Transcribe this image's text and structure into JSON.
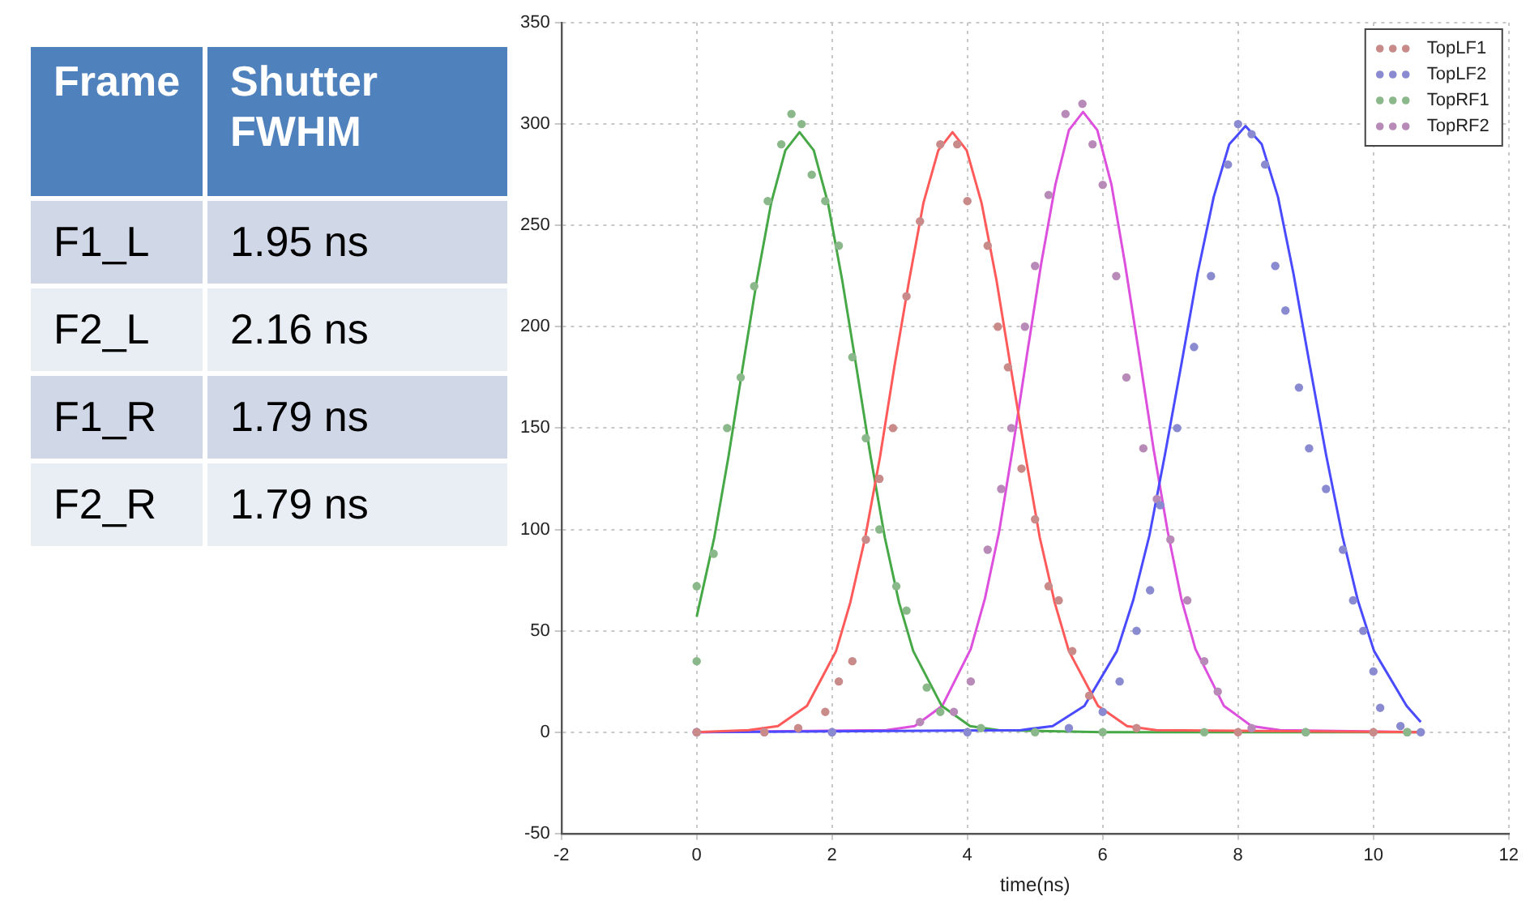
{
  "chart_data": [
    {
      "type": "scatter",
      "xlabel": "time(ns)",
      "xlim": [
        -2,
        12
      ],
      "xticks": [
        -2,
        0,
        2,
        4,
        6,
        8,
        10,
        12
      ],
      "ylim": [
        -50,
        350
      ],
      "yticks": [
        -50,
        0,
        50,
        100,
        150,
        200,
        250,
        300,
        350
      ],
      "grid": true,
      "legend": "top right",
      "marker": "circle",
      "series": [
        {
          "name": "TopLF1",
          "color": "#c98a8a",
          "x": [
            0,
            1,
            1.5,
            1.9,
            2.1,
            2.3,
            2.5,
            2.7,
            2.9,
            3.1,
            3.3,
            3.6,
            3.85,
            4.0,
            4.3,
            4.45,
            4.6,
            4.8,
            5.0,
            5.2,
            5.35,
            5.55,
            5.8,
            6.5,
            8,
            10
          ],
          "values": [
            0,
            0,
            2,
            10,
            25,
            35,
            95,
            125,
            150,
            215,
            252,
            290,
            290,
            262,
            240,
            200,
            180,
            130,
            105,
            72,
            65,
            40,
            18,
            2,
            0,
            0
          ]
        },
        {
          "name": "TopLF2",
          "color": "#8a8ad0",
          "x": [
            0,
            2,
            4,
            5.5,
            6.0,
            6.25,
            6.5,
            6.7,
            6.85,
            7.1,
            7.35,
            7.6,
            7.85,
            8.0,
            8.2,
            8.4,
            8.55,
            8.7,
            8.9,
            9.05,
            9.3,
            9.55,
            9.7,
            9.85,
            10.0,
            10.1,
            10.4,
            10.7
          ],
          "values": [
            0,
            0,
            0,
            2,
            10,
            25,
            50,
            70,
            112,
            150,
            190,
            225,
            280,
            300,
            295,
            280,
            230,
            208,
            170,
            140,
            120,
            90,
            65,
            50,
            30,
            12,
            3,
            0
          ]
        },
        {
          "name": "TopRF1",
          "color": "#8ab88a",
          "x": [
            0,
            0,
            0.25,
            0.45,
            0.65,
            0.85,
            1.05,
            1.25,
            1.4,
            1.55,
            1.7,
            1.9,
            2.1,
            2.3,
            2.5,
            2.7,
            2.95,
            3.1,
            3.4,
            3.6,
            4.2,
            5,
            6,
            7.5,
            9,
            10.5
          ],
          "values": [
            35,
            72,
            88,
            150,
            175,
            220,
            262,
            290,
            305,
            300,
            275,
            262,
            240,
            185,
            145,
            100,
            72,
            60,
            22,
            10,
            2,
            0,
            0,
            0,
            0,
            0
          ]
        },
        {
          "name": "TopRF2",
          "color": "#b88ab8",
          "x": [
            0,
            1,
            2,
            3.3,
            3.8,
            4.05,
            4.3,
            4.5,
            4.65,
            4.85,
            5.0,
            5.2,
            5.45,
            5.7,
            5.85,
            6.0,
            6.2,
            6.35,
            6.6,
            6.8,
            7.0,
            7.25,
            7.5,
            7.7,
            8.2,
            9,
            10.5
          ],
          "values": [
            0,
            0,
            0,
            5,
            10,
            25,
            90,
            120,
            150,
            200,
            230,
            265,
            305,
            310,
            290,
            270,
            225,
            175,
            140,
            115,
            95,
            65,
            35,
            20,
            2,
            0,
            0
          ]
        },
        {
          "type": "line",
          "marker": "none",
          "color": "#ff5a5a",
          "x": [
            0,
            0.77,
            1.2,
            1.63,
            2.06,
            2.27,
            2.49,
            2.71,
            2.92,
            3.14,
            3.35,
            3.57,
            3.78,
            3.99,
            4.21,
            4.43,
            4.64,
            4.86,
            5.07,
            5.29,
            5.5,
            5.93,
            6.36,
            6.79,
            10.7
          ],
          "values": [
            0,
            1,
            3,
            13,
            40,
            64,
            96,
            136,
            180,
            223,
            261,
            287,
            296,
            287,
            261,
            223,
            180,
            136,
            96,
            64,
            40,
            13,
            3,
            1,
            0
          ]
        },
        {
          "type": "line",
          "marker": "none",
          "color": "#4a4aff",
          "x": [
            0,
            4.79,
            5.26,
            5.73,
            6.21,
            6.45,
            6.69,
            6.92,
            7.16,
            7.4,
            7.64,
            7.87,
            8.11,
            8.35,
            8.59,
            8.82,
            9.06,
            9.3,
            9.54,
            9.77,
            10.01,
            10.49,
            10.7
          ],
          "values": [
            0,
            1,
            3,
            13,
            40,
            65,
            97,
            137,
            181,
            226,
            264,
            290,
            299,
            290,
            264,
            226,
            181,
            137,
            97,
            65,
            40,
            13,
            5
          ]
        },
        {
          "type": "line",
          "marker": "none",
          "color": "#46a846",
          "x": [
            0,
            0.26,
            0.47,
            0.68,
            0.89,
            1.1,
            1.31,
            1.52,
            1.73,
            1.94,
            2.15,
            2.36,
            2.57,
            2.78,
            2.99,
            3.2,
            3.62,
            4.04,
            4.46,
            6,
            10.7
          ],
          "values": [
            57,
            96,
            136,
            180,
            223,
            261,
            287,
            296,
            287,
            261,
            223,
            180,
            136,
            96,
            64,
            40,
            13,
            3,
            1,
            0,
            0
          ]
        },
        {
          "type": "line",
          "marker": "none",
          "color": "#dd4fdd",
          "x": [
            0,
            2.8,
            3.22,
            3.63,
            4.05,
            4.26,
            4.47,
            4.67,
            4.88,
            5.09,
            5.3,
            5.5,
            5.71,
            5.92,
            6.13,
            6.33,
            6.54,
            6.75,
            6.96,
            7.16,
            7.37,
            7.79,
            8.2,
            8.62,
            10.7
          ],
          "values": [
            0,
            1,
            3,
            13,
            41,
            66,
            99,
            140,
            186,
            231,
            270,
            297,
            306,
            297,
            270,
            231,
            186,
            140,
            99,
            66,
            41,
            13,
            3,
            1,
            0
          ]
        }
      ]
    },
    {
      "type": "other",
      "categories": [
        "Frame",
        "Shutter FWHM"
      ],
      "cell_labels": [
        [
          "F1_L",
          "1.95 ns"
        ],
        [
          "F2_L",
          "2.16 ns"
        ],
        [
          "F1_R",
          "1.79 ns"
        ],
        [
          "F2_R",
          "1.79 ns"
        ]
      ]
    }
  ]
}
